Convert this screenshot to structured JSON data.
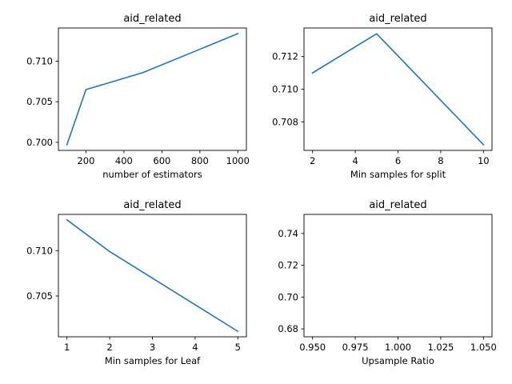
{
  "colors": {
    "line": "#1f77b4",
    "axes": "#000000",
    "background": "#ffffff"
  },
  "chart_data": [
    {
      "type": "line",
      "title": "aid_related",
      "xlabel": "number of estimators",
      "ylabel": "",
      "x": [
        100,
        200,
        500,
        1000
      ],
      "y": [
        0.6997,
        0.7065,
        0.7086,
        0.7134
      ],
      "xlim": [
        55,
        1045
      ],
      "ylim": [
        0.699,
        0.7141
      ],
      "xticks": [
        200,
        400,
        600,
        800,
        1000
      ],
      "xtick_labels": [
        "200",
        "400",
        "600",
        "800",
        "1000"
      ],
      "yticks": [
        0.7,
        0.705,
        0.71
      ],
      "ytick_labels": [
        "0.700",
        "0.705",
        "0.710"
      ],
      "grid": false
    },
    {
      "type": "line",
      "title": "aid_related",
      "xlabel": "Min samples for split",
      "ylabel": "",
      "x": [
        2,
        5,
        10
      ],
      "y": [
        0.711,
        0.7134,
        0.7066
      ],
      "xlim": [
        1.6,
        10.4
      ],
      "ylim": [
        0.70625,
        0.71375
      ],
      "xticks": [
        2,
        4,
        6,
        8,
        10
      ],
      "xtick_labels": [
        "2",
        "4",
        "6",
        "8",
        "10"
      ],
      "yticks": [
        0.708,
        0.71,
        0.712
      ],
      "ytick_labels": [
        "0.708",
        "0.710",
        "0.712"
      ],
      "grid": false
    },
    {
      "type": "line",
      "title": "aid_related",
      "xlabel": "Min samples for Leaf",
      "ylabel": "",
      "x": [
        1,
        2,
        5
      ],
      "y": [
        0.7134,
        0.7099,
        0.7011
      ],
      "xlim": [
        0.8,
        5.2
      ],
      "ylim": [
        0.7005,
        0.714
      ],
      "xticks": [
        1,
        2,
        3,
        4,
        5
      ],
      "xtick_labels": [
        "1",
        "2",
        "3",
        "4",
        "5"
      ],
      "yticks": [
        0.705,
        0.71
      ],
      "ytick_labels": [
        "0.705",
        "0.710"
      ],
      "grid": false
    },
    {
      "type": "line",
      "title": "aid_related",
      "xlabel": "Upsample Ratio",
      "ylabel": "",
      "x": [],
      "y": [],
      "xlim": [
        0.945,
        1.055
      ],
      "ylim": [
        0.675,
        0.752
      ],
      "xticks": [
        0.95,
        0.975,
        1.0,
        1.025,
        1.05
      ],
      "xtick_labels": [
        "0.950",
        "0.975",
        "1.000",
        "1.025",
        "1.050"
      ],
      "yticks": [
        0.68,
        0.7,
        0.72,
        0.74
      ],
      "ytick_labels": [
        "0.68",
        "0.70",
        "0.72",
        "0.74"
      ],
      "grid": false
    }
  ]
}
